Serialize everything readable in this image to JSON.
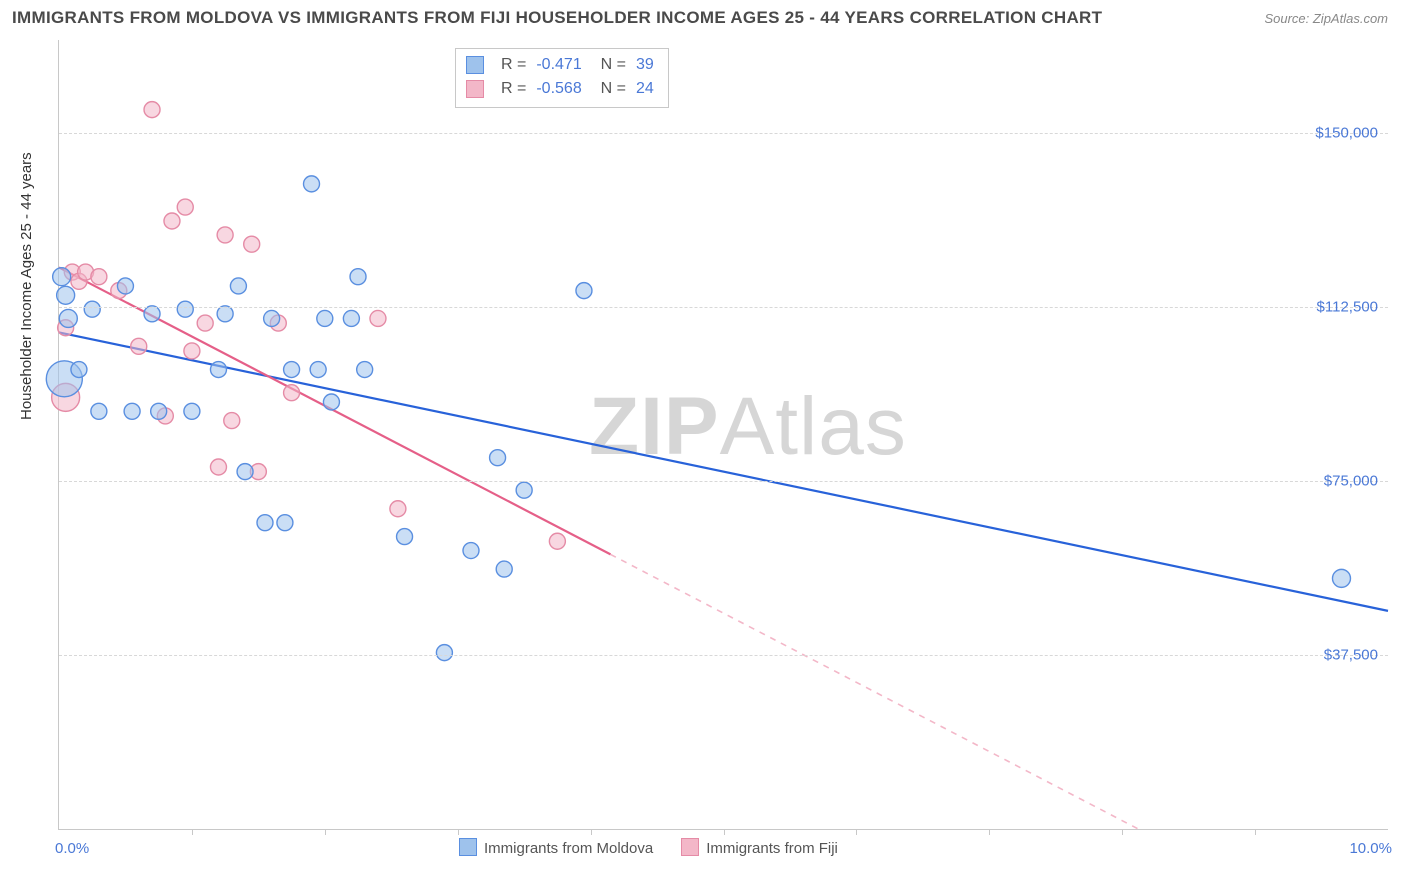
{
  "title": "IMMIGRANTS FROM MOLDOVA VS IMMIGRANTS FROM FIJI HOUSEHOLDER INCOME AGES 25 - 44 YEARS CORRELATION CHART",
  "source": "Source: ZipAtlas.com",
  "ylabel": "Householder Income Ages 25 - 44 years",
  "watermark_a": "ZIP",
  "watermark_b": "Atlas",
  "chart": {
    "type": "scatter",
    "xlim": [
      0,
      10
    ],
    "ylim": [
      0,
      170000
    ],
    "yticks": [
      {
        "v": 37500,
        "label": "$37,500"
      },
      {
        "v": 75000,
        "label": "$75,000"
      },
      {
        "v": 112500,
        "label": "$112,500"
      },
      {
        "v": 150000,
        "label": "$150,000"
      }
    ],
    "xticks": [
      1,
      2,
      3,
      4,
      5,
      6,
      7,
      8,
      9
    ],
    "xaxis_start": "0.0%",
    "xaxis_end": "10.0%",
    "background_color": "#ffffff",
    "grid_color": "#d8d8d8",
    "axis_color": "#c8c8c8"
  },
  "series": [
    {
      "name": "Immigrants from Moldova",
      "stroke": "#2862d9",
      "fill": "#9ec2ec",
      "fill_opacity": 0.55,
      "marker_stroke": "#5a8fe0",
      "R": "-0.471",
      "N": "39",
      "trend": {
        "x1": 0,
        "y1": 107000,
        "x2": 10,
        "y2": 47000,
        "extrapolate_from_x": null
      },
      "points": [
        {
          "x": 0.02,
          "y": 119000,
          "r": 9
        },
        {
          "x": 0.05,
          "y": 115000,
          "r": 9
        },
        {
          "x": 0.07,
          "y": 110000,
          "r": 9
        },
        {
          "x": 0.04,
          "y": 97000,
          "r": 18
        },
        {
          "x": 0.15,
          "y": 99000,
          "r": 8
        },
        {
          "x": 0.25,
          "y": 112000,
          "r": 8
        },
        {
          "x": 0.3,
          "y": 90000,
          "r": 8
        },
        {
          "x": 0.5,
          "y": 117000,
          "r": 8
        },
        {
          "x": 0.55,
          "y": 90000,
          "r": 8
        },
        {
          "x": 0.7,
          "y": 111000,
          "r": 8
        },
        {
          "x": 0.75,
          "y": 90000,
          "r": 8
        },
        {
          "x": 0.95,
          "y": 112000,
          "r": 8
        },
        {
          "x": 1.0,
          "y": 90000,
          "r": 8
        },
        {
          "x": 1.2,
          "y": 99000,
          "r": 8
        },
        {
          "x": 1.25,
          "y": 111000,
          "r": 8
        },
        {
          "x": 1.35,
          "y": 117000,
          "r": 8
        },
        {
          "x": 1.4,
          "y": 77000,
          "r": 8
        },
        {
          "x": 1.55,
          "y": 66000,
          "r": 8
        },
        {
          "x": 1.6,
          "y": 110000,
          "r": 8
        },
        {
          "x": 1.7,
          "y": 66000,
          "r": 8
        },
        {
          "x": 1.75,
          "y": 99000,
          "r": 8
        },
        {
          "x": 1.9,
          "y": 139000,
          "r": 8
        },
        {
          "x": 1.95,
          "y": 99000,
          "r": 8
        },
        {
          "x": 2.0,
          "y": 110000,
          "r": 8
        },
        {
          "x": 2.05,
          "y": 92000,
          "r": 8
        },
        {
          "x": 2.2,
          "y": 110000,
          "r": 8
        },
        {
          "x": 2.25,
          "y": 119000,
          "r": 8
        },
        {
          "x": 2.3,
          "y": 99000,
          "r": 8
        },
        {
          "x": 2.6,
          "y": 63000,
          "r": 8
        },
        {
          "x": 2.9,
          "y": 38000,
          "r": 8
        },
        {
          "x": 3.1,
          "y": 60000,
          "r": 8
        },
        {
          "x": 3.3,
          "y": 80000,
          "r": 8
        },
        {
          "x": 3.35,
          "y": 56000,
          "r": 8
        },
        {
          "x": 3.5,
          "y": 73000,
          "r": 8
        },
        {
          "x": 3.95,
          "y": 116000,
          "r": 8
        },
        {
          "x": 9.65,
          "y": 54000,
          "r": 9
        }
      ]
    },
    {
      "name": "Immigrants from Fiji",
      "stroke": "#e55f88",
      "fill": "#f3b7c8",
      "fill_opacity": 0.55,
      "marker_stroke": "#e58ba6",
      "R": "-0.568",
      "N": "24",
      "trend": {
        "x1": 0,
        "y1": 121000,
        "x2": 10,
        "y2": -28000,
        "extrapolate_from_x": 4.15
      },
      "points": [
        {
          "x": 0.05,
          "y": 108000,
          "r": 8
        },
        {
          "x": 0.05,
          "y": 93000,
          "r": 14
        },
        {
          "x": 0.1,
          "y": 120000,
          "r": 8
        },
        {
          "x": 0.15,
          "y": 118000,
          "r": 8
        },
        {
          "x": 0.2,
          "y": 120000,
          "r": 8
        },
        {
          "x": 0.3,
          "y": 119000,
          "r": 8
        },
        {
          "x": 0.45,
          "y": 116000,
          "r": 8
        },
        {
          "x": 0.6,
          "y": 104000,
          "r": 8
        },
        {
          "x": 0.7,
          "y": 155000,
          "r": 8
        },
        {
          "x": 0.8,
          "y": 89000,
          "r": 8
        },
        {
          "x": 0.85,
          "y": 131000,
          "r": 8
        },
        {
          "x": 0.95,
          "y": 134000,
          "r": 8
        },
        {
          "x": 1.0,
          "y": 103000,
          "r": 8
        },
        {
          "x": 1.1,
          "y": 109000,
          "r": 8
        },
        {
          "x": 1.2,
          "y": 78000,
          "r": 8
        },
        {
          "x": 1.25,
          "y": 128000,
          "r": 8
        },
        {
          "x": 1.3,
          "y": 88000,
          "r": 8
        },
        {
          "x": 1.45,
          "y": 126000,
          "r": 8
        },
        {
          "x": 1.5,
          "y": 77000,
          "r": 8
        },
        {
          "x": 1.65,
          "y": 109000,
          "r": 8
        },
        {
          "x": 1.75,
          "y": 94000,
          "r": 8
        },
        {
          "x": 2.4,
          "y": 110000,
          "r": 8
        },
        {
          "x": 2.55,
          "y": 69000,
          "r": 8
        },
        {
          "x": 3.75,
          "y": 62000,
          "r": 8
        }
      ]
    }
  ],
  "legend": {
    "series_a": "Immigrants from Moldova",
    "series_b": "Immigrants from Fiji"
  }
}
